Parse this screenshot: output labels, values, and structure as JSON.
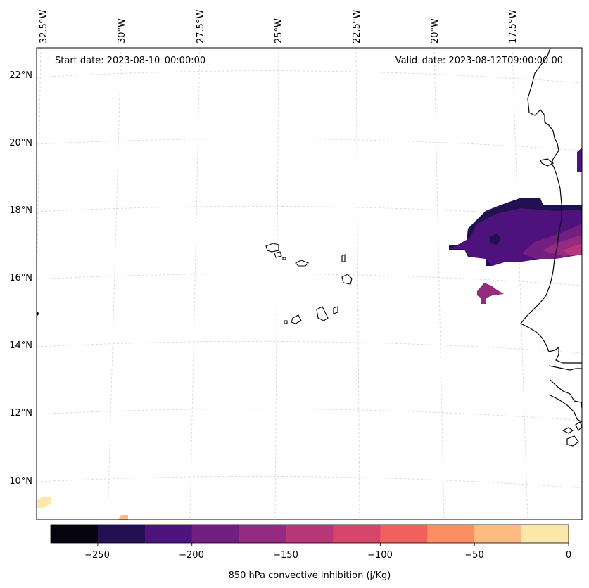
{
  "map": {
    "variable_label": "850 hPa convective inhibition (j/Kg)",
    "start_date_text": "Start date: 2023-08-10_00:00:00",
    "valid_date_text": "Valid_date: 2023-08-12T09:00:00.00",
    "longitude_ticks": [
      "32.5°W",
      "30°W",
      "27.5°W",
      "25°W",
      "22.5°W",
      "20°W",
      "17.5°W"
    ],
    "latitude_ticks": [
      "22°N",
      "20°N",
      "18°N",
      "16°N",
      "14°N",
      "12°N",
      "10°N"
    ],
    "region": "Cabo Verde and West African coast"
  },
  "colorbar": {
    "ticks": [
      "−250",
      "−200",
      "−150",
      "−100",
      "−50",
      "0"
    ],
    "levels": [
      -275,
      -250,
      -225,
      -200,
      -175,
      -150,
      -125,
      -100,
      -75,
      -50,
      -25,
      0
    ],
    "colors": [
      "#05040f",
      "#221150",
      "#4d127c",
      "#711f81",
      "#952b80",
      "#b73779",
      "#d8456c",
      "#f1605d",
      "#fc8e64",
      "#febb81",
      "#fde7a9"
    ]
  }
}
